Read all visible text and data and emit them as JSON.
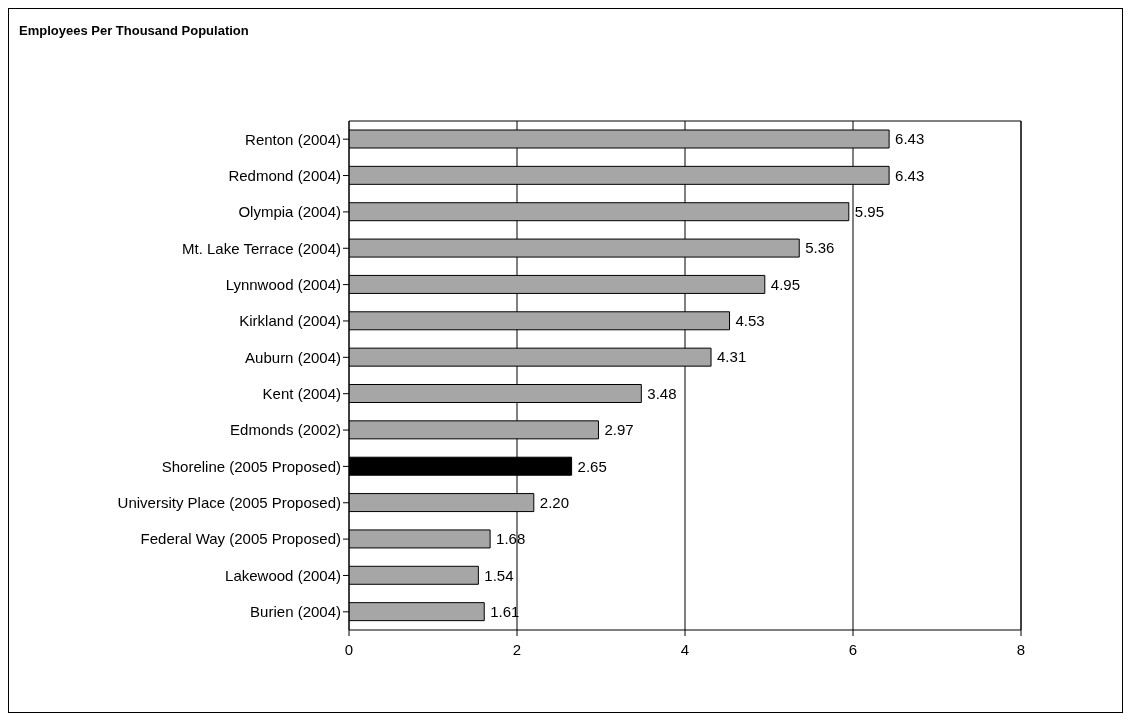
{
  "chart_data": {
    "type": "bar",
    "orientation": "horizontal",
    "title": "Employees Per Thousand Population",
    "categories": [
      "Renton (2004)",
      "Redmond (2004)",
      "Olympia (2004)",
      "Mt. Lake Terrace (2004)",
      "Lynnwood (2004)",
      "Kirkland (2004)",
      "Auburn (2004)",
      "Kent (2004)",
      "Edmonds (2002)",
      "Shoreline (2005 Proposed)",
      "University Place (2005 Proposed)",
      "Federal Way (2005 Proposed)",
      "Lakewood (2004)",
      "Burien (2004)"
    ],
    "values": [
      6.43,
      6.43,
      5.95,
      5.36,
      4.95,
      4.53,
      4.31,
      3.48,
      2.97,
      2.65,
      2.2,
      1.68,
      1.54,
      1.61
    ],
    "value_labels": [
      "6.43",
      "6.43",
      "5.95",
      "5.36",
      "4.95",
      "4.53",
      "4.31",
      "3.48",
      "2.97",
      "2.65",
      "2.20",
      "1.68",
      "1.54",
      "1.61"
    ],
    "colors": [
      "#a6a6a6",
      "#a6a6a6",
      "#a6a6a6",
      "#a6a6a6",
      "#a6a6a6",
      "#a6a6a6",
      "#a6a6a6",
      "#a6a6a6",
      "#a6a6a6",
      "#000000",
      "#a6a6a6",
      "#a6a6a6",
      "#a6a6a6",
      "#a6a6a6"
    ],
    "xlim": [
      0,
      8
    ],
    "xticks": [
      0,
      2,
      4,
      6,
      8
    ],
    "grid": "x",
    "legend": false
  }
}
